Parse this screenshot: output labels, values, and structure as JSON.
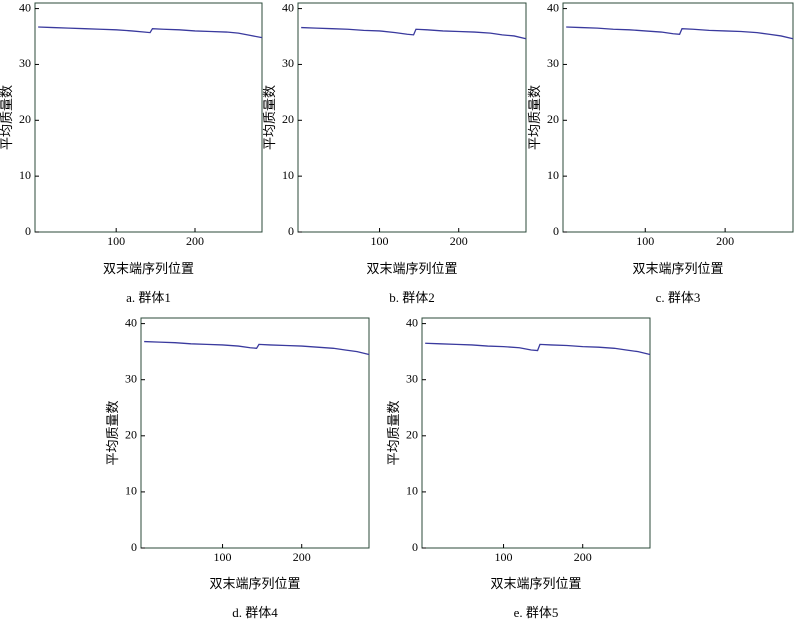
{
  "chart_data": [
    {
      "type": "line",
      "caption": "a. 群体1",
      "xlabel": "双末端序列位置",
      "ylabel": "平均质量数",
      "x": [
        1,
        20,
        40,
        60,
        80,
        100,
        120,
        135,
        143,
        146,
        160,
        180,
        200,
        220,
        240,
        255,
        270,
        285
      ],
      "values": [
        36.7,
        36.6,
        36.5,
        36.4,
        36.3,
        36.2,
        36.0,
        35.8,
        35.7,
        36.4,
        36.3,
        36.2,
        36.0,
        35.9,
        35.8,
        35.6,
        35.2,
        34.8
      ],
      "color": "#3a3a9e",
      "xlim": [
        -3,
        285
      ],
      "ylim": [
        0,
        41
      ],
      "xticks": [
        100,
        200
      ],
      "yticks": [
        0,
        10,
        20,
        30,
        40
      ]
    },
    {
      "type": "line",
      "caption": "b. 群体2",
      "xlabel": "双末端序列位置",
      "ylabel": "平均质量数",
      "x": [
        1,
        20,
        40,
        60,
        80,
        100,
        120,
        135,
        143,
        146,
        160,
        180,
        200,
        220,
        240,
        255,
        270,
        285
      ],
      "values": [
        36.6,
        36.5,
        36.4,
        36.3,
        36.1,
        36.0,
        35.7,
        35.4,
        35.3,
        36.3,
        36.2,
        36.0,
        35.9,
        35.8,
        35.6,
        35.3,
        35.1,
        34.6
      ],
      "color": "#3a3a9e",
      "xlim": [
        -3,
        285
      ],
      "ylim": [
        0,
        41
      ],
      "xticks": [
        100,
        200
      ],
      "yticks": [
        0,
        10,
        20,
        30,
        40
      ]
    },
    {
      "type": "line",
      "caption": "c. 群体3",
      "xlabel": "双末端序列位置",
      "ylabel": "平均质量数",
      "x": [
        1,
        20,
        40,
        60,
        80,
        100,
        120,
        135,
        143,
        146,
        160,
        180,
        200,
        220,
        240,
        255,
        270,
        285
      ],
      "values": [
        36.7,
        36.6,
        36.5,
        36.3,
        36.2,
        36.0,
        35.8,
        35.5,
        35.4,
        36.4,
        36.3,
        36.1,
        36.0,
        35.9,
        35.7,
        35.4,
        35.1,
        34.6
      ],
      "color": "#3a3a9e",
      "xlim": [
        -3,
        285
      ],
      "ylim": [
        0,
        41
      ],
      "xticks": [
        100,
        200
      ],
      "yticks": [
        0,
        10,
        20,
        30,
        40
      ]
    },
    {
      "type": "line",
      "caption": "d. 群体4",
      "xlabel": "双末端序列位置",
      "ylabel": "平均质量数",
      "x": [
        1,
        20,
        40,
        60,
        80,
        100,
        120,
        135,
        143,
        146,
        160,
        180,
        200,
        220,
        240,
        255,
        270,
        285
      ],
      "values": [
        36.8,
        36.7,
        36.6,
        36.4,
        36.3,
        36.2,
        36.0,
        35.7,
        35.6,
        36.3,
        36.2,
        36.1,
        36.0,
        35.8,
        35.6,
        35.3,
        35.0,
        34.5
      ],
      "color": "#3a3a9e",
      "xlim": [
        -3,
        285
      ],
      "ylim": [
        0,
        41
      ],
      "xticks": [
        100,
        200
      ],
      "yticks": [
        0,
        10,
        20,
        30,
        40
      ]
    },
    {
      "type": "line",
      "caption": "e. 群体5",
      "xlabel": "双末端序列位置",
      "ylabel": "平均质量数",
      "x": [
        1,
        20,
        40,
        60,
        80,
        100,
        120,
        135,
        143,
        146,
        160,
        180,
        200,
        220,
        240,
        255,
        270,
        285
      ],
      "values": [
        36.5,
        36.4,
        36.3,
        36.2,
        36.0,
        35.9,
        35.7,
        35.3,
        35.2,
        36.3,
        36.2,
        36.1,
        35.9,
        35.8,
        35.6,
        35.3,
        35.0,
        34.5
      ],
      "color": "#3a3a9e",
      "xlim": [
        -3,
        285
      ],
      "ylim": [
        0,
        41
      ],
      "xticks": [
        100,
        200
      ],
      "yticks": [
        0,
        10,
        20,
        30,
        40
      ]
    }
  ]
}
